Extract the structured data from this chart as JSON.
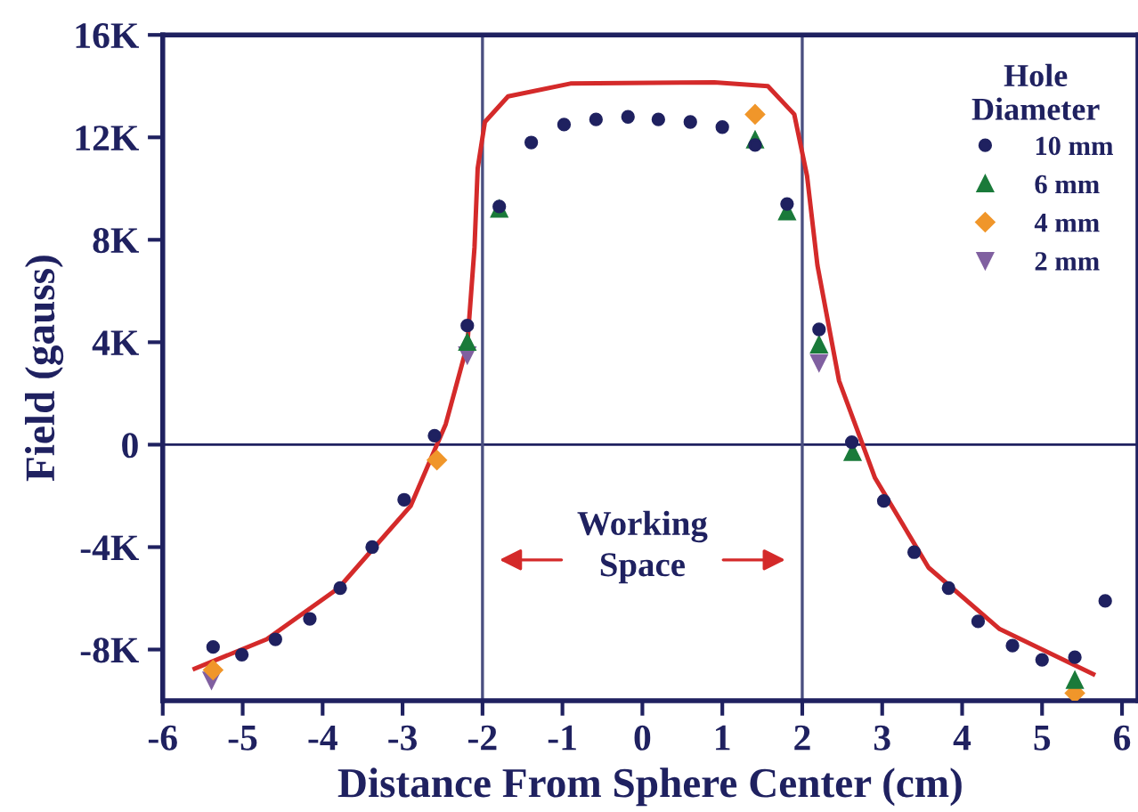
{
  "chart_data": {
    "type": "scatter",
    "xlabel": "Distance From Sphere Center (cm)",
    "ylabel": "Field (gauss)",
    "legend_title": "Hole Diameter",
    "legend": "top right",
    "grid": false,
    "xlim": [
      -6,
      6.2
    ],
    "ylim": [
      -10000,
      16000
    ],
    "xticks": [
      -6,
      -5,
      -4,
      -3,
      -2,
      -1,
      0,
      1,
      2,
      3,
      4,
      5,
      6
    ],
    "yticks": [
      {
        "value": -8000,
        "label": "-8K"
      },
      {
        "value": -4000,
        "label": "-4K"
      },
      0,
      {
        "value": 4000,
        "label": "4K"
      },
      {
        "value": 8000,
        "label": "8K"
      },
      {
        "value": 12000,
        "label": "12K"
      },
      {
        "value": 16000,
        "label": "16K"
      }
    ],
    "ref_lines": [
      {
        "axis": "y",
        "value": 0,
        "color": "#1f2160"
      },
      {
        "axis": "x",
        "value": -2,
        "color": "#4a4f80"
      },
      {
        "axis": "x",
        "value": 2,
        "color": "#4a4f80"
      }
    ],
    "annotations": [
      "Working Space"
    ],
    "series": [
      {
        "type": "line",
        "color": "#d42a2a",
        "marker": "none",
        "x": [
          -5.6,
          -4.7,
          -3.8,
          -2.9,
          -2.46,
          -2.19,
          -2.1,
          -2.06,
          -1.97,
          -1.68,
          -0.9,
          0.9,
          1.57,
          1.9,
          2.06,
          2.19,
          2.46,
          2.91,
          3.58,
          4.47,
          5.64
        ],
        "values": [
          -8750,
          -7600,
          -5600,
          -2400,
          800,
          3900,
          7700,
          10800,
          12600,
          13600,
          14100,
          14150,
          14000,
          12900,
          10500,
          7000,
          2500,
          -1300,
          -4800,
          -7200,
          -8960
        ]
      },
      {
        "name": "10 mm",
        "color": "#1f2160",
        "marker": "circle",
        "x": [
          -5.37,
          -5.01,
          -4.59,
          -4.16,
          -3.78,
          -3.38,
          -2.98,
          -2.6,
          -2.19,
          -1.79,
          -1.39,
          -0.98,
          -0.58,
          -0.18,
          0.2,
          0.6,
          1.0,
          1.41,
          1.81,
          2.21,
          2.62,
          3.02,
          3.4,
          3.83,
          4.2,
          4.63,
          5.0,
          5.41,
          5.79
        ],
        "values": [
          -7900,
          -8200,
          -7600,
          -6800,
          -5600,
          -4000,
          -2150,
          350,
          4650,
          9300,
          11800,
          12500,
          12700,
          12800,
          12700,
          12600,
          12400,
          11700,
          9400,
          4500,
          100,
          -2200,
          -4200,
          -5600,
          -6900,
          -7850,
          -8400,
          -8300,
          -6100
        ]
      },
      {
        "name": "6 mm",
        "color": "#1a7a3a",
        "marker": "triangle",
        "x": [
          -2.19,
          -1.79,
          1.41,
          1.81,
          2.21,
          2.63,
          5.41
        ],
        "values": [
          4000,
          9200,
          11900,
          9100,
          3900,
          -300,
          -9200
        ]
      },
      {
        "name": "4 mm",
        "color": "#f0962a",
        "marker": "diamond",
        "x": [
          -5.37,
          -2.57,
          1.41,
          5.41
        ],
        "values": [
          -8800,
          -600,
          12900,
          -9700
        ]
      },
      {
        "name": "2 mm",
        "color": "#8060a0",
        "marker": "triangle_down",
        "x": [
          -5.39,
          -2.19,
          2.21
        ],
        "values": [
          -9200,
          3500,
          3200
        ]
      }
    ]
  }
}
